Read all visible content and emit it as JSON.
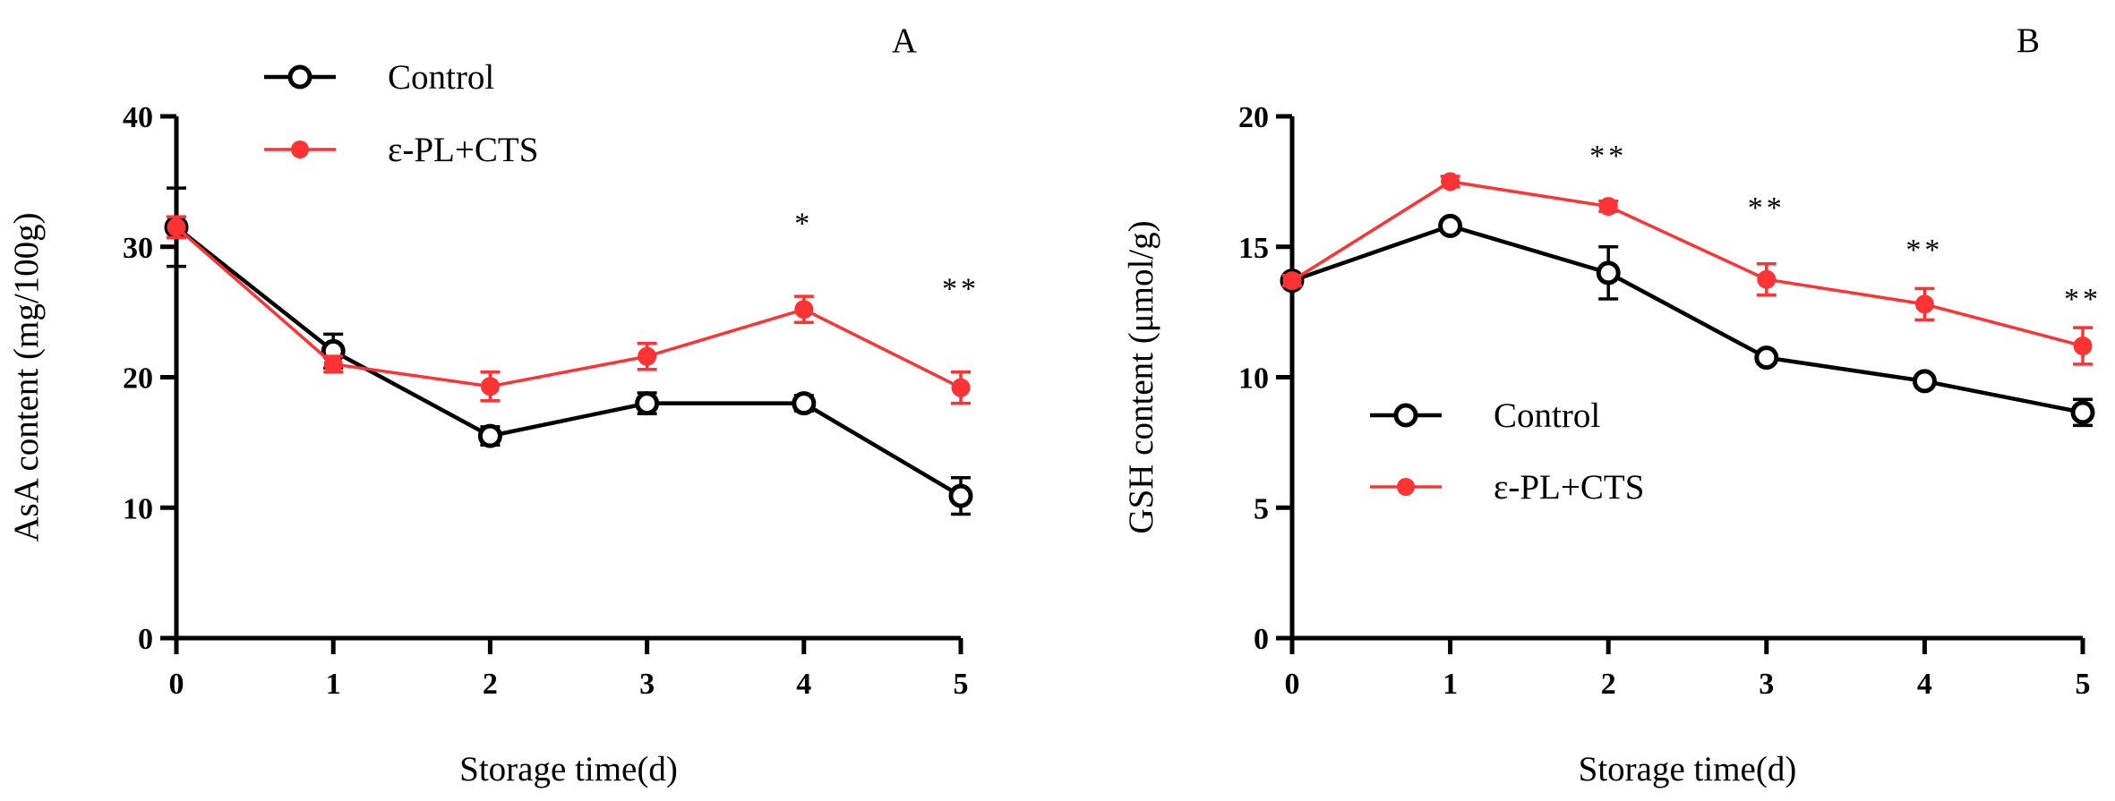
{
  "chart_data": [
    {
      "type": "line",
      "panel_label": "A",
      "xlabel": "Storage time(d)",
      "ylabel": "AsA content (mg/100g)",
      "x": [
        0,
        1,
        2,
        3,
        4,
        5
      ],
      "xlim": [
        0,
        5
      ],
      "ylim": [
        0,
        40
      ],
      "yticks": [
        0,
        10,
        20,
        30,
        40
      ],
      "legend_position": "top-left",
      "series": [
        {
          "name": "Control",
          "color": "#000000",
          "marker": "open-circle",
          "values": [
            31.5,
            22.0,
            15.5,
            18.0,
            18.0,
            10.9
          ],
          "errors": [
            3.0,
            1.3,
            0.7,
            0.8,
            0.6,
            1.4
          ]
        },
        {
          "name": "ε-PL+CTS",
          "color": "#ff3333",
          "marker": "filled-circle",
          "values": [
            31.5,
            21.0,
            19.3,
            21.6,
            25.2,
            19.2
          ],
          "errors": [
            0.8,
            0.6,
            1.1,
            1.0,
            1.0,
            1.2
          ]
        }
      ],
      "annotations": [
        {
          "x": 4,
          "text": "*",
          "y": 32
        },
        {
          "x": 5,
          "text": "**",
          "y": 27
        }
      ]
    },
    {
      "type": "line",
      "panel_label": "B",
      "xlabel": "Storage time(d)",
      "ylabel": "GSH content (μmol/g)",
      "x": [
        0,
        1,
        2,
        3,
        4,
        5
      ],
      "xlim": [
        0,
        5
      ],
      "ylim": [
        0,
        20
      ],
      "yticks": [
        0,
        5,
        10,
        15,
        20
      ],
      "legend_position": "center-left",
      "series": [
        {
          "name": "Control",
          "color": "#000000",
          "marker": "open-circle",
          "values": [
            13.7,
            15.8,
            14.0,
            10.75,
            9.85,
            8.65
          ],
          "errors": [
            0.2,
            0.2,
            1.0,
            0.2,
            0.2,
            0.5
          ]
        },
        {
          "name": "ε-PL+CTS",
          "color": "#ff3333",
          "marker": "filled-circle",
          "values": [
            13.7,
            17.5,
            16.55,
            13.75,
            12.8,
            11.2
          ],
          "errors": [
            0.2,
            0.2,
            0.2,
            0.6,
            0.6,
            0.7
          ]
        }
      ],
      "annotations": [
        {
          "x": 2,
          "text": "**",
          "y": 18.6
        },
        {
          "x": 3,
          "text": "**",
          "y": 16.6
        },
        {
          "x": 4,
          "text": "**",
          "y": 15.0
        },
        {
          "x": 5,
          "text": "**",
          "y": 13.1
        }
      ]
    }
  ]
}
